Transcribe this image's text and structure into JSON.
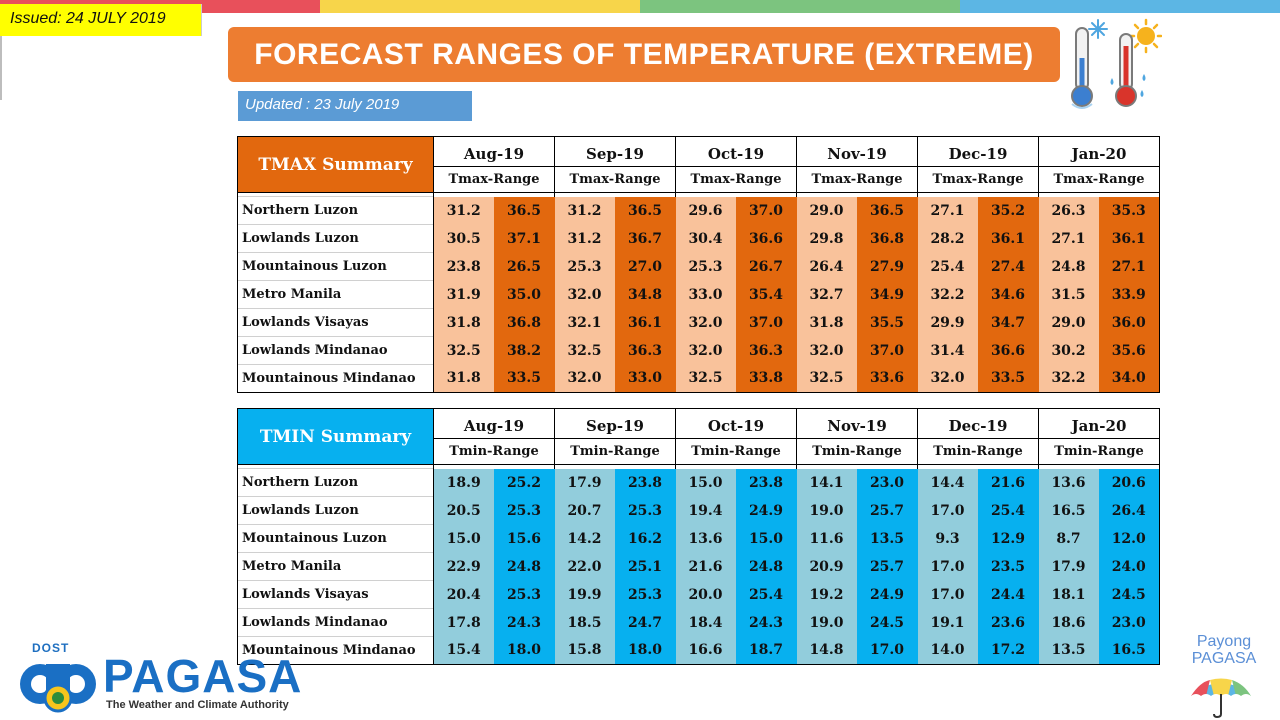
{
  "issued": "Issued: 24 JULY 2019",
  "title": "FORECAST RANGES OF TEMPERATURE (EXTREME)",
  "updated": "Updated : 23 July 2019",
  "colors": {
    "strip": [
      "#e8505b",
      "#f7d54a",
      "#7cc47f",
      "#5cb6e4"
    ],
    "banner": "#ed7d31",
    "updated_box": "#5b9bd5",
    "tmax_dark": "#e2680e",
    "tmax_light": "#f9c29b",
    "tmin_dark": "#07b0ef",
    "tmin_light": "#92cddc"
  },
  "months": [
    "Aug-19",
    "Sep-19",
    "Oct-19",
    "Nov-19",
    "Dec-19",
    "Jan-20"
  ],
  "tmax": {
    "title": "TMAX Summary",
    "range_label": "Tmax-Range",
    "rows": [
      {
        "region": "Northern Luzon",
        "values": [
          [
            "31.2",
            "36.5"
          ],
          [
            "31.2",
            "36.5"
          ],
          [
            "29.6",
            "37.0"
          ],
          [
            "29.0",
            "36.5"
          ],
          [
            "27.1",
            "35.2"
          ],
          [
            "26.3",
            "35.3"
          ]
        ]
      },
      {
        "region": "Lowlands Luzon",
        "values": [
          [
            "30.5",
            "37.1"
          ],
          [
            "31.2",
            "36.7"
          ],
          [
            "30.4",
            "36.6"
          ],
          [
            "29.8",
            "36.8"
          ],
          [
            "28.2",
            "36.1"
          ],
          [
            "27.1",
            "36.1"
          ]
        ]
      },
      {
        "region": "Mountainous Luzon",
        "values": [
          [
            "23.8",
            "26.5"
          ],
          [
            "25.3",
            "27.0"
          ],
          [
            "25.3",
            "26.7"
          ],
          [
            "26.4",
            "27.9"
          ],
          [
            "25.4",
            "27.4"
          ],
          [
            "24.8",
            "27.1"
          ]
        ]
      },
      {
        "region": "Metro Manila",
        "values": [
          [
            "31.9",
            "35.0"
          ],
          [
            "32.0",
            "34.8"
          ],
          [
            "33.0",
            "35.4"
          ],
          [
            "32.7",
            "34.9"
          ],
          [
            "32.2",
            "34.6"
          ],
          [
            "31.5",
            "33.9"
          ]
        ]
      },
      {
        "region": "Lowlands Visayas",
        "values": [
          [
            "31.8",
            "36.8"
          ],
          [
            "32.1",
            "36.1"
          ],
          [
            "32.0",
            "37.0"
          ],
          [
            "31.8",
            "35.5"
          ],
          [
            "29.9",
            "34.7"
          ],
          [
            "29.0",
            "36.0"
          ]
        ]
      },
      {
        "region": "Lowlands Mindanao",
        "values": [
          [
            "32.5",
            "38.2"
          ],
          [
            "32.5",
            "36.3"
          ],
          [
            "32.0",
            "36.3"
          ],
          [
            "32.0",
            "37.0"
          ],
          [
            "31.4",
            "36.6"
          ],
          [
            "30.2",
            "35.6"
          ]
        ]
      },
      {
        "region": "Mountainous Mindanao",
        "values": [
          [
            "31.8",
            "33.5"
          ],
          [
            "32.0",
            "33.0"
          ],
          [
            "32.5",
            "33.8"
          ],
          [
            "32.5",
            "33.6"
          ],
          [
            "32.0",
            "33.5"
          ],
          [
            "32.2",
            "34.0"
          ]
        ]
      }
    ]
  },
  "tmin": {
    "title": "TMIN Summary",
    "range_label": "Tmin-Range",
    "rows": [
      {
        "region": "Northern Luzon",
        "values": [
          [
            "18.9",
            "25.2"
          ],
          [
            "17.9",
            "23.8"
          ],
          [
            "15.0",
            "23.8"
          ],
          [
            "14.1",
            "23.0"
          ],
          [
            "14.4",
            "21.6"
          ],
          [
            "13.6",
            "20.6"
          ]
        ]
      },
      {
        "region": "Lowlands Luzon",
        "values": [
          [
            "20.5",
            "25.3"
          ],
          [
            "20.7",
            "25.3"
          ],
          [
            "19.4",
            "24.9"
          ],
          [
            "19.0",
            "25.7"
          ],
          [
            "17.0",
            "25.4"
          ],
          [
            "16.5",
            "26.4"
          ]
        ]
      },
      {
        "region": "Mountainous Luzon",
        "values": [
          [
            "15.0",
            "15.6"
          ],
          [
            "14.2",
            "16.2"
          ],
          [
            "13.6",
            "15.0"
          ],
          [
            "11.6",
            "13.5"
          ],
          [
            "9.3",
            "12.9"
          ],
          [
            "8.7",
            "12.0"
          ]
        ]
      },
      {
        "region": "Metro Manila",
        "values": [
          [
            "22.9",
            "24.8"
          ],
          [
            "22.0",
            "25.1"
          ],
          [
            "21.6",
            "24.8"
          ],
          [
            "20.9",
            "25.7"
          ],
          [
            "17.0",
            "23.5"
          ],
          [
            "17.9",
            "24.0"
          ]
        ]
      },
      {
        "region": "Lowlands Visayas",
        "values": [
          [
            "20.4",
            "25.3"
          ],
          [
            "19.9",
            "25.3"
          ],
          [
            "20.0",
            "25.4"
          ],
          [
            "19.2",
            "24.9"
          ],
          [
            "17.0",
            "24.4"
          ],
          [
            "18.1",
            "24.5"
          ]
        ]
      },
      {
        "region": "Lowlands Mindanao",
        "values": [
          [
            "17.8",
            "24.3"
          ],
          [
            "18.5",
            "24.7"
          ],
          [
            "18.4",
            "24.3"
          ],
          [
            "19.0",
            "24.5"
          ],
          [
            "19.1",
            "23.6"
          ],
          [
            "18.6",
            "23.0"
          ]
        ]
      },
      {
        "region": "Mountainous Mindanao",
        "values": [
          [
            "15.4",
            "18.0"
          ],
          [
            "15.8",
            "18.0"
          ],
          [
            "16.6",
            "18.7"
          ],
          [
            "14.8",
            "17.0"
          ],
          [
            "14.0",
            "17.2"
          ],
          [
            "13.5",
            "16.5"
          ]
        ]
      }
    ]
  },
  "logo": {
    "dost": "DOST",
    "name": "PAGASA",
    "tagline": "The Weather and Climate Authority",
    "payong_line1": "Payong",
    "payong_line2": "PAGASA",
    "thermometer_icon": "thermometer-cold-hot-icon",
    "sun_icon": "sun-icon",
    "snowflake_icon": "snowflake-icon",
    "umbrella_icon": "umbrella-icon"
  }
}
